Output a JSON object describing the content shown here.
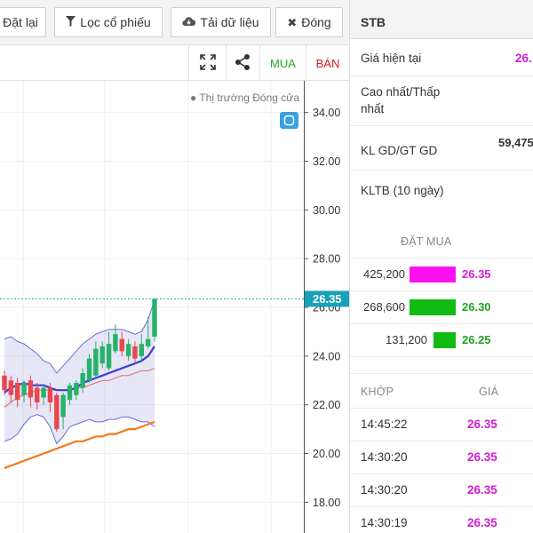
{
  "toolbar": {
    "reset_label": "Đặt lại",
    "filter_label": "Lọc cổ phiếu",
    "download_label": "Tải dữ liệu",
    "close_label": "Đóng"
  },
  "chart_tools": {
    "buy_label": "MUA",
    "sell_label": "BÁN"
  },
  "chart": {
    "market_status": "● Thị trường Đóng cửa",
    "last_price_label": "26.35",
    "y_ticks": [
      "34.00",
      "32.00",
      "30.00",
      "28.00",
      "26.00",
      "24.00",
      "22.00",
      "20.00",
      "18.00"
    ]
  },
  "chart_data": {
    "type": "candlestick",
    "y_range": [
      16.7,
      35.3
    ],
    "last_price": 26.35,
    "candles": [
      {
        "o": 23.2,
        "c": 22.6,
        "h": 23.4,
        "l": 22.4,
        "up": false
      },
      {
        "o": 23.0,
        "c": 22.4,
        "h": 23.2,
        "l": 22.1,
        "up": false
      },
      {
        "o": 22.9,
        "c": 22.2,
        "h": 23.1,
        "l": 21.9,
        "up": false
      },
      {
        "o": 22.4,
        "c": 22.9,
        "h": 23.0,
        "l": 22.1,
        "up": true
      },
      {
        "o": 23.0,
        "c": 22.3,
        "h": 23.2,
        "l": 21.9,
        "up": false
      },
      {
        "o": 22.7,
        "c": 22.1,
        "h": 22.9,
        "l": 21.8,
        "up": false
      },
      {
        "o": 22.3,
        "c": 22.7,
        "h": 22.8,
        "l": 22.0,
        "up": true
      },
      {
        "o": 22.7,
        "c": 22.1,
        "h": 22.9,
        "l": 21.7,
        "up": false
      },
      {
        "o": 22.4,
        "c": 21.0,
        "h": 22.5,
        "l": 20.9,
        "up": false
      },
      {
        "o": 21.5,
        "c": 22.4,
        "h": 22.5,
        "l": 21.0,
        "up": true
      },
      {
        "o": 22.2,
        "c": 22.8,
        "h": 22.9,
        "l": 22.0,
        "up": true
      },
      {
        "o": 22.4,
        "c": 22.9,
        "h": 23.0,
        "l": 22.2,
        "up": true
      },
      {
        "o": 22.7,
        "c": 23.3,
        "h": 23.5,
        "l": 22.5,
        "up": true
      },
      {
        "o": 23.0,
        "c": 23.9,
        "h": 24.1,
        "l": 22.9,
        "up": true
      },
      {
        "o": 23.2,
        "c": 24.3,
        "h": 24.6,
        "l": 23.1,
        "up": true
      },
      {
        "o": 23.7,
        "c": 24.4,
        "h": 24.6,
        "l": 23.5,
        "up": true
      },
      {
        "o": 23.5,
        "c": 24.5,
        "h": 25.0,
        "l": 23.4,
        "up": true
      },
      {
        "o": 24.2,
        "c": 24.9,
        "h": 25.3,
        "l": 24.1,
        "up": true
      },
      {
        "o": 24.7,
        "c": 24.2,
        "h": 25.0,
        "l": 24.0,
        "up": false
      },
      {
        "o": 24.0,
        "c": 24.5,
        "h": 24.7,
        "l": 23.8,
        "up": true
      },
      {
        "o": 24.4,
        "c": 23.9,
        "h": 24.6,
        "l": 23.7,
        "up": false
      },
      {
        "o": 24.0,
        "c": 24.5,
        "h": 24.9,
        "l": 23.8,
        "up": true
      },
      {
        "o": 24.4,
        "c": 24.7,
        "h": 25.6,
        "l": 24.3,
        "up": true
      },
      {
        "o": 24.8,
        "c": 26.35,
        "h": 26.35,
        "l": 24.6,
        "up": true
      }
    ],
    "bands": {
      "upper": [
        24.7,
        24.8,
        24.6,
        24.5,
        24.3,
        24.1,
        23.8,
        23.7,
        23.3,
        23.6,
        23.9,
        24.2,
        24.5,
        24.7,
        24.9,
        25.0,
        25.1,
        25.1,
        25.1,
        25.0,
        24.9,
        25.0,
        25.5,
        26.3
      ],
      "lower": [
        20.5,
        20.6,
        20.8,
        21.2,
        21.5,
        21.6,
        21.5,
        21.1,
        20.4,
        20.7,
        21.1,
        21.2,
        21.3,
        21.4,
        21.3,
        21.3,
        21.4,
        21.4,
        21.5,
        21.5,
        21.4,
        21.3,
        21.3,
        21.1
      ],
      "mid": [
        22.5,
        22.7,
        22.8,
        22.9,
        22.8,
        22.8,
        22.8,
        22.7,
        22.6,
        22.6,
        22.6,
        22.7,
        22.9,
        23.0,
        23.1,
        23.2,
        23.3,
        23.4,
        23.5,
        23.6,
        23.7,
        23.8,
        24.0,
        24.4
      ],
      "ma_red": [
        21.9,
        22.1,
        22.3,
        22.4,
        22.5,
        22.6,
        22.6,
        22.6,
        22.6,
        22.6,
        22.6,
        22.7,
        22.7,
        22.8,
        22.9,
        23.0,
        23.0,
        23.1,
        23.2,
        23.2,
        23.3,
        23.4,
        23.4,
        23.5
      ],
      "ma_orange": [
        19.4,
        19.5,
        19.6,
        19.7,
        19.8,
        19.9,
        20.0,
        20.1,
        20.2,
        20.3,
        20.4,
        20.5,
        20.5,
        20.6,
        20.7,
        20.7,
        20.8,
        20.8,
        20.9,
        21.0,
        21.0,
        21.1,
        21.2,
        21.3
      ]
    }
  },
  "symbol": "STB",
  "info": {
    "current_price_label": "Giá hiện tại",
    "current_price_value": "26.",
    "high_low_label_1": "Cao nhất/Thấp",
    "high_low_label_2": "nhất",
    "volume_label": "KL GD/GT GD",
    "volume_value": "59,475",
    "avg_label": "KLTB (10 ngày)"
  },
  "order_book": {
    "title": "ĐẶT MUA",
    "rows": [
      {
        "volume": "425,200",
        "price": "26.35",
        "bar_color": "#ff11ee",
        "bar_fraction": 1.0
      },
      {
        "volume": "268,600",
        "price": "26.30",
        "bar_color": "#11bb11",
        "bar_fraction": 1.0
      },
      {
        "volume": "131,200",
        "price": "26.25",
        "bar_color": "#11bb11",
        "bar_fraction": 0.5
      }
    ]
  },
  "trades": {
    "col_time": "KHỚP",
    "col_price": "GIÁ",
    "rows": [
      {
        "time": "14:45:22",
        "price": "26.35"
      },
      {
        "time": "14:30:20",
        "price": "26.35"
      },
      {
        "time": "14:30:20",
        "price": "26.35"
      },
      {
        "time": "14:30:19",
        "price": "26.35"
      }
    ]
  }
}
